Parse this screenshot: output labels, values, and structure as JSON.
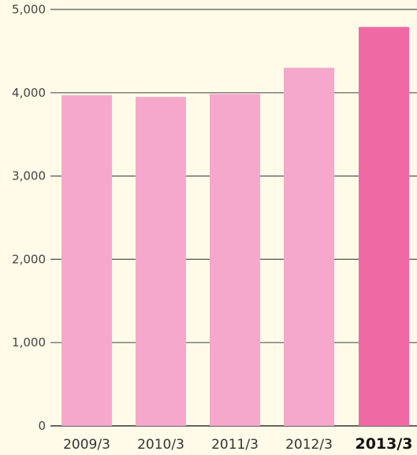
{
  "chart_data": {
    "type": "bar",
    "categories": [
      "2009/3",
      "2010/3",
      "2011/3",
      "2012/3",
      "2013/3"
    ],
    "values": [
      3970,
      3950,
      3985,
      4300,
      4790
    ],
    "highlight_index": 4,
    "ylim": [
      0,
      5000
    ],
    "yticks": [
      0,
      1000,
      2000,
      3000,
      4000,
      5000
    ],
    "ytick_labels": [
      "0",
      "1,000",
      "2,000",
      "3,000",
      "4,000",
      "5,000"
    ],
    "title": "",
    "xlabel": "",
    "ylabel": "",
    "grid": true,
    "colors": {
      "bar": "#f5a8cc",
      "bar_highlight": "#ef6aa5",
      "background": "#fffbe8",
      "grid": "#555555"
    }
  }
}
